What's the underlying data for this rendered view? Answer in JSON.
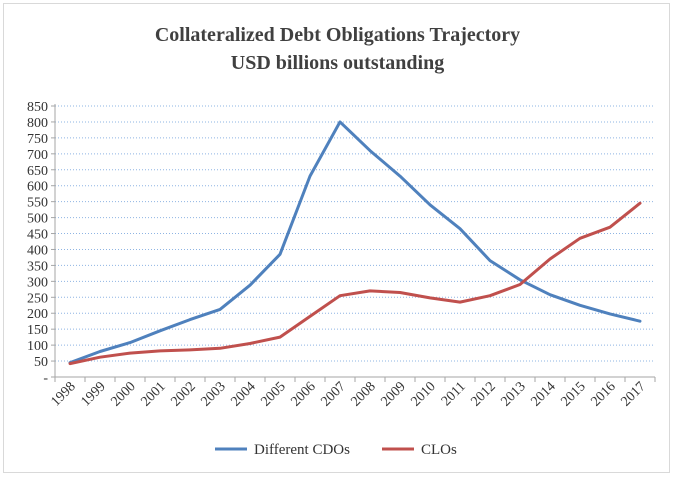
{
  "chart_data": {
    "type": "line",
    "title_lines": [
      "Collateralized  Debt Obligations Trajectory",
      "USD billions outstanding"
    ],
    "x": [
      "1998",
      "1999",
      "2000",
      "2001",
      "2002",
      "2003",
      "2004",
      "2005",
      "2006",
      "2007",
      "2008",
      "2009",
      "2010",
      "2011",
      "2012",
      "2013",
      "2014",
      "2015",
      "2016",
      "2017"
    ],
    "y_ticks": [
      "-",
      "50",
      "100",
      "150",
      "200",
      "250",
      "300",
      "350",
      "400",
      "450",
      "500",
      "550",
      "600",
      "650",
      "700",
      "750",
      "800",
      "850"
    ],
    "ylim": [
      0,
      850
    ],
    "grid": "horizontal dotted",
    "legend_position": "bottom",
    "series": [
      {
        "name": "Different CDOs",
        "color": "#4f81bd",
        "values": [
          45,
          80,
          108,
          145,
          180,
          212,
          288,
          385,
          630,
          800,
          710,
          630,
          540,
          465,
          365,
          305,
          258,
          225,
          198,
          175
        ]
      },
      {
        "name": "CLOs",
        "color": "#c0504d",
        "values": [
          42,
          62,
          75,
          82,
          85,
          90,
          105,
          125,
          190,
          255,
          270,
          265,
          248,
          235,
          255,
          290,
          370,
          435,
          470,
          545
        ]
      }
    ]
  }
}
